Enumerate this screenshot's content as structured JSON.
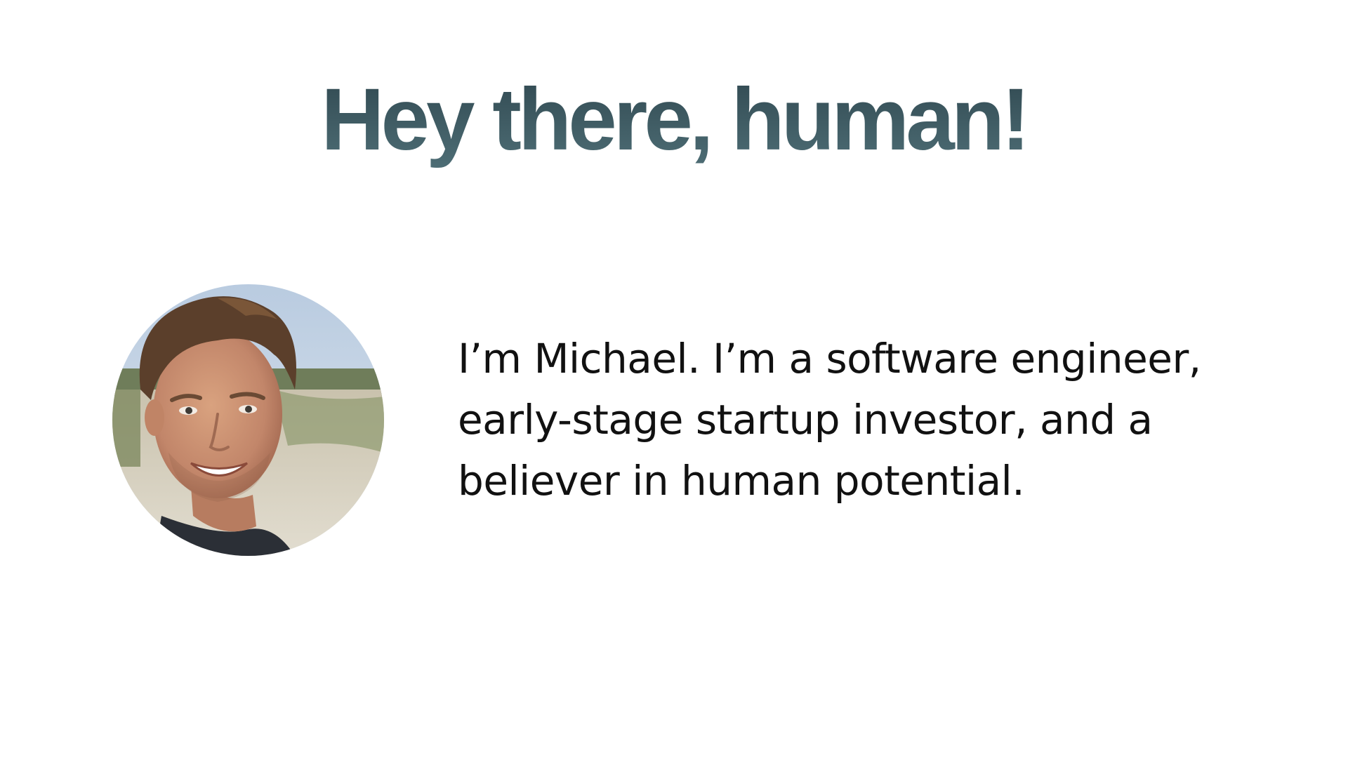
{
  "header": {
    "title": "Hey there, human!"
  },
  "profile": {
    "avatar_icon": "portrait-photo",
    "intro_text": "I’m Michael. I’m a software engineer, early-stage startup investor, and a believer in human potential."
  },
  "colors": {
    "title": "#3d5a62",
    "text": "#111111",
    "background": "#ffffff"
  }
}
